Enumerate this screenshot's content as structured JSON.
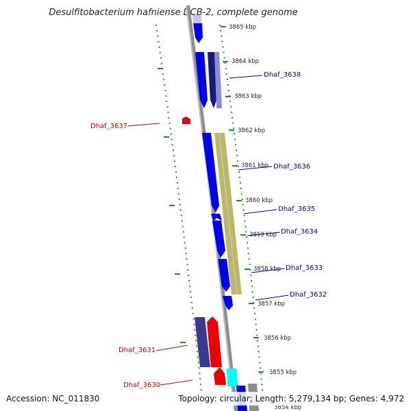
{
  "title": "Desulfitobacterium hafniense DCB-2, complete genome",
  "footer": {
    "accession": "Accession: NC_011830",
    "summary": "Topology: circular; Length: 5,279,134 bp; Genes: 4,972"
  },
  "ticks": [
    "3865 kbp",
    "3864 kbp",
    "3863 kbp",
    "3862 kbp",
    "3861 kbp",
    "3860 kbp",
    "3859 kbp",
    "3858 kbp",
    "3857 kbp",
    "3856 kbp",
    "3855 kbp",
    "3854 kbp"
  ],
  "gene_labels": {
    "dhaf_3638": "Dhaf_3638",
    "dhaf_3637": "Dhaf_3637",
    "dhaf_3636": "Dhaf_3636",
    "dhaf_3635": "Dhaf_3635",
    "dhaf_3634": "Dhaf_3634",
    "dhaf_3633": "Dhaf_3633",
    "dhaf_3632": "Dhaf_3632",
    "dhaf_3631": "Dhaf_3631",
    "dhaf_3630": "Dhaf_3630"
  },
  "colors": {
    "forward_gene": "#0000ee",
    "forward_gene_dark": "#3a3a8c",
    "reverse_gene": "#ee0000",
    "cyan_feature": "#00ffff",
    "khaki_feature": "#bdb76b",
    "backbone": "#8c8c8c",
    "tick": "#228b22"
  }
}
